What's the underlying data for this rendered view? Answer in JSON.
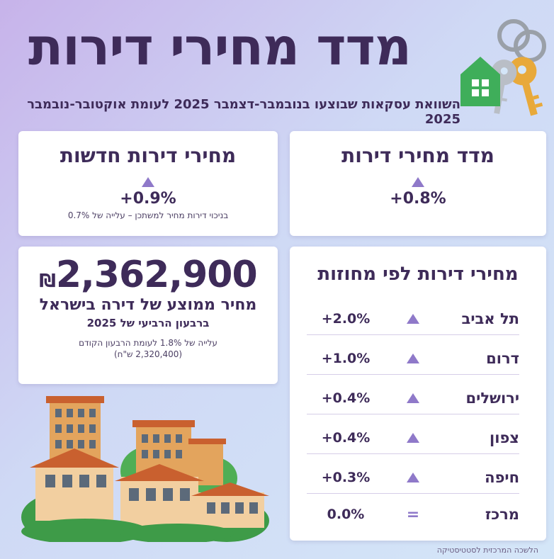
{
  "header": {
    "title": "מדד מחירי דירות",
    "subtitle": "השוואת עסקאות שבוצעו בנובמבר-דצמבר 2025 לעומת אוקטובר-נובמבר 2025"
  },
  "card_index": {
    "title": "מדד מחירי דירות",
    "change": "+0.8%",
    "trend_icon": "up-triangle-icon"
  },
  "card_new": {
    "title": "מחירי דירות חדשות",
    "change": "+0.9%",
    "note": "בניכוי דירות מחיר למשתכן – עלייה של 0.7%"
  },
  "card_average": {
    "price": "2,362,900",
    "currency": "₪",
    "line1": "מחיר ממוצע של דירה בישראל",
    "line2": "ברבעון הרביעי של 2025",
    "note1": "עלייה של 1.8% לעומת הרבעון הקודם",
    "note2": "(2,320,400 ש\"ח)"
  },
  "card_regions": {
    "title": "מחירי דירות לפי מחוזות",
    "rows": [
      {
        "name": "תל אביב",
        "value": "+2.0%",
        "trend": "up"
      },
      {
        "name": "דרום",
        "value": "+1.0%",
        "trend": "up"
      },
      {
        "name": "ירושלים",
        "value": "+0.4%",
        "trend": "up"
      },
      {
        "name": "צפון",
        "value": "+0.4%",
        "trend": "up"
      },
      {
        "name": "חיפה",
        "value": "+0.3%",
        "trend": "up"
      },
      {
        "name": "מרכז",
        "value": "0.0%",
        "trend": "equal",
        "equal_symbol": "="
      }
    ]
  },
  "footer": {
    "source": "הלשכה המרכזית לסטטיסטיקה"
  },
  "colors": {
    "accent": "#8f79c9",
    "title": "#3e2b59"
  }
}
